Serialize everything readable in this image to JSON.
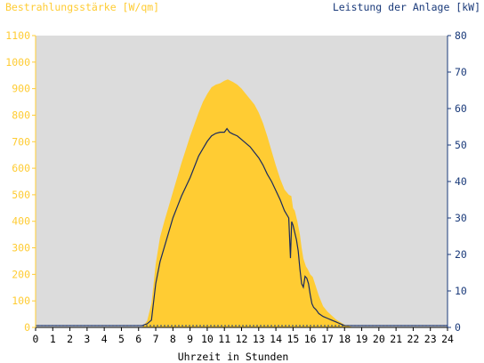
{
  "chart_data": {
    "type": "area",
    "left_title": "Bestrahlungsstärke [W/qm]",
    "right_title": "Leistung der Anlage [kW]",
    "xlabel": "Uhrzeit in Stunden",
    "x_ticks": [
      "0",
      "1",
      "2",
      "3",
      "4",
      "5",
      "6",
      "7",
      "8",
      "9",
      "10",
      "11",
      "12",
      "13",
      "14",
      "15",
      "16",
      "17",
      "18",
      "19",
      "20",
      "21",
      "22",
      "23",
      "24"
    ],
    "y_left_ticks": [
      "0",
      "100",
      "200",
      "300",
      "400",
      "500",
      "600",
      "700",
      "800",
      "900",
      "1000",
      "1100"
    ],
    "y_right_ticks": [
      "0",
      "10",
      "20",
      "30",
      "40",
      "50",
      "60",
      "70",
      "80"
    ],
    "xlim": [
      0,
      24
    ],
    "ylim_left": [
      0,
      1100
    ],
    "ylim_right": [
      0,
      80
    ],
    "colors": {
      "background": "#dcdcdc",
      "irradiance": "#ffcc33",
      "power": "#1a2a5e",
      "left_axis": "#ffcc33",
      "right_axis": "#1a3a7a",
      "x_axis": "#000000"
    },
    "series": [
      {
        "name": "Bestrahlungsstärke [W/qm]",
        "axis": "left",
        "style": "area",
        "x": [
          0,
          6.2,
          6.5,
          6.75,
          7.0,
          7.25,
          7.5,
          7.75,
          8.0,
          8.25,
          8.5,
          8.75,
          9.0,
          9.25,
          9.5,
          9.75,
          10.0,
          10.25,
          10.5,
          10.75,
          11.0,
          11.2,
          11.5,
          11.75,
          12.0,
          12.25,
          12.5,
          12.75,
          13.0,
          13.25,
          13.5,
          13.75,
          14.0,
          14.25,
          14.5,
          14.75,
          14.9,
          15.0,
          15.1,
          15.25,
          15.4,
          15.5,
          15.6,
          15.75,
          15.85,
          16.0,
          16.15,
          16.3,
          16.5,
          16.75,
          17.0,
          17.25,
          17.5,
          17.75,
          18.0,
          18.25,
          18.5,
          18.75,
          24
        ],
        "y": [
          0,
          0,
          25,
          90,
          240,
          340,
          400,
          455,
          510,
          565,
          620,
          670,
          720,
          765,
          810,
          850,
          880,
          905,
          915,
          920,
          930,
          935,
          925,
          915,
          900,
          880,
          860,
          840,
          810,
          770,
          720,
          665,
          610,
          560,
          520,
          500,
          495,
          450,
          440,
          400,
          350,
          300,
          260,
          230,
          220,
          200,
          190,
          160,
          120,
          80,
          60,
          45,
          30,
          20,
          10,
          5,
          0,
          0,
          0
        ]
      },
      {
        "name": "Leistung der Anlage [kW]",
        "axis": "right",
        "style": "line",
        "x": [
          0,
          6.2,
          6.5,
          6.75,
          7.0,
          7.25,
          7.5,
          7.75,
          8.0,
          8.25,
          8.5,
          8.75,
          9.0,
          9.25,
          9.5,
          9.75,
          10.0,
          10.25,
          10.5,
          10.75,
          11.0,
          11.15,
          11.3,
          11.5,
          11.75,
          12.0,
          12.25,
          12.5,
          12.75,
          13.0,
          13.25,
          13.5,
          13.75,
          14.0,
          14.25,
          14.5,
          14.75,
          14.85,
          14.92,
          15.0,
          15.1,
          15.2,
          15.3,
          15.4,
          15.5,
          15.6,
          15.7,
          15.8,
          15.9,
          16.0,
          16.1,
          16.2,
          16.35,
          16.5,
          16.75,
          17.0,
          17.25,
          17.5,
          17.75,
          18.0,
          18.25,
          18.5,
          18.75,
          24
        ],
        "y": [
          0.5,
          0.5,
          1.0,
          2.0,
          12.0,
          18.0,
          22.0,
          26.0,
          30.0,
          33.0,
          36.0,
          38.5,
          41.0,
          44.0,
          47.0,
          49.0,
          51.0,
          52.5,
          53.2,
          53.5,
          53.5,
          54.5,
          53.5,
          53.0,
          52.5,
          51.5,
          50.5,
          49.5,
          48.0,
          46.5,
          44.5,
          42.0,
          40.0,
          37.5,
          35.0,
          32.0,
          30.0,
          19.0,
          29.0,
          28.0,
          26.0,
          24.0,
          21.0,
          16.0,
          12.0,
          11.0,
          14.0,
          13.5,
          12.0,
          9.0,
          6.5,
          5.5,
          4.8,
          3.8,
          3.0,
          2.5,
          2.0,
          1.5,
          1.0,
          0.5,
          0.5,
          0.5,
          0.5,
          0.5
        ]
      }
    ],
    "grid": false,
    "legend": "none"
  }
}
